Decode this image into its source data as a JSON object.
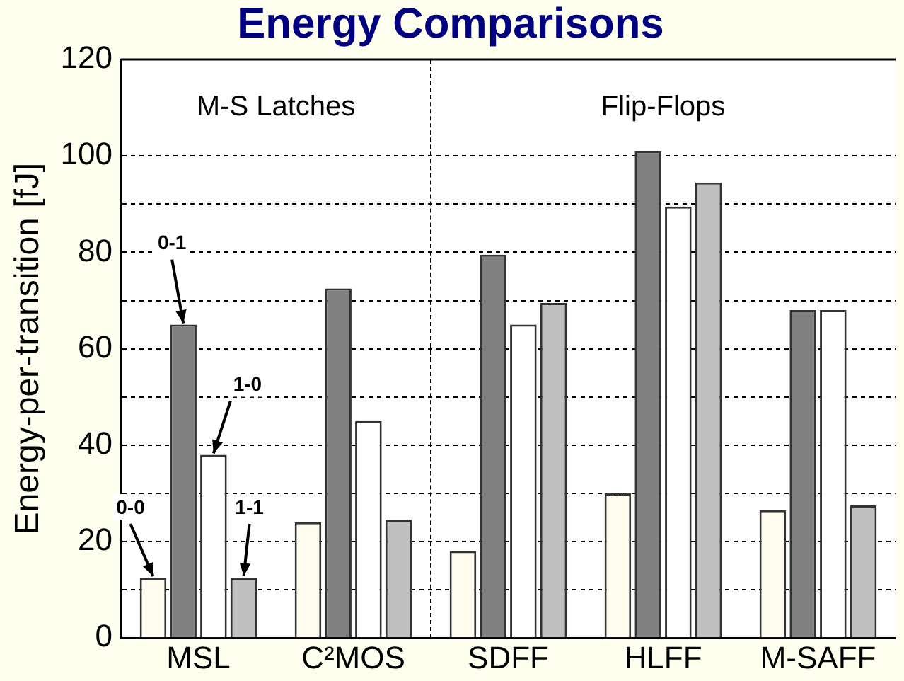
{
  "chart_data": {
    "type": "bar",
    "title": "Energy Comparisons",
    "ylabel": "Energy-per-transition [fJ]",
    "categories": [
      "MSL",
      "C²MOS",
      "SDFF",
      "HLFF",
      "M-SAFF"
    ],
    "series": [
      {
        "name": "0-0",
        "color": "#fffbee",
        "values": [
          12.5,
          24,
          18,
          30,
          26.5
        ]
      },
      {
        "name": "0-1",
        "color": "#808080",
        "values": [
          65,
          72.5,
          79.5,
          101,
          68
        ]
      },
      {
        "name": "1-0",
        "color": "#ffffff",
        "values": [
          38,
          45,
          65,
          89.5,
          68
        ]
      },
      {
        "name": "1-1",
        "color": "#c0c0c0",
        "values": [
          12.5,
          24.5,
          69.5,
          94.5,
          27.5
        ]
      }
    ],
    "ylim": [
      0,
      120
    ],
    "yticks": [
      0,
      {
        "value": 10,
        "label": null
      },
      20,
      {
        "value": 30,
        "label": null
      },
      40,
      {
        "value": 50,
        "label": null
      },
      60,
      {
        "value": 70,
        "label": null
      },
      80,
      {
        "value": 90,
        "label": null
      },
      100,
      120
    ],
    "grid": "y",
    "legend": false,
    "annotations": [
      "M-S Latches",
      "Flip-Flops"
    ]
  }
}
